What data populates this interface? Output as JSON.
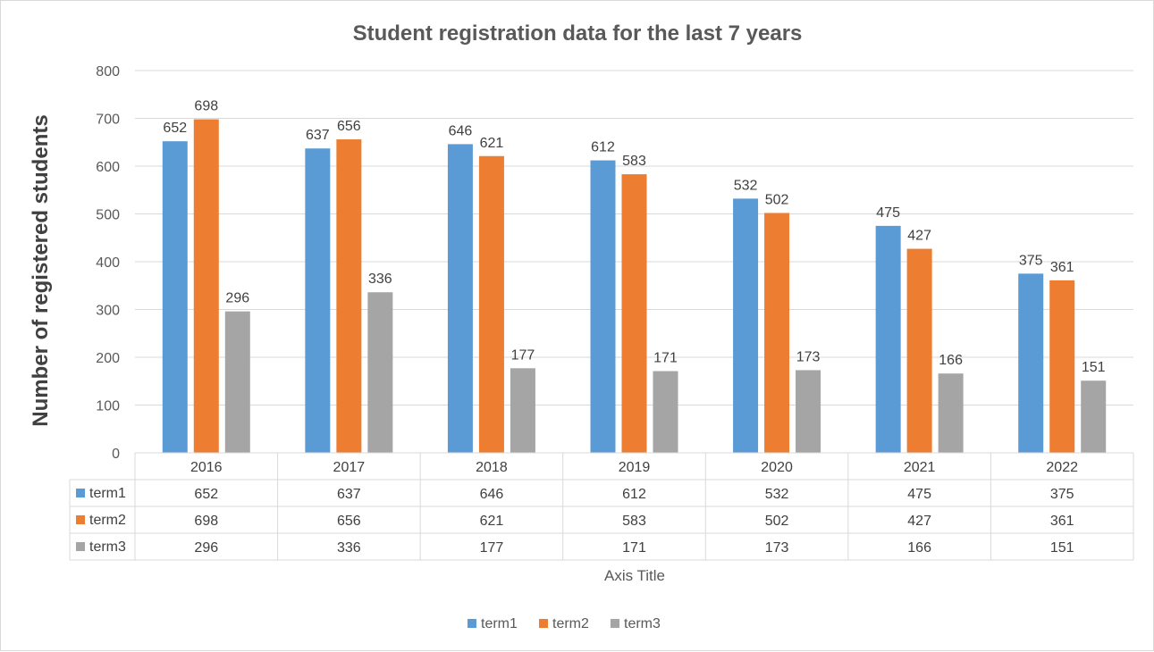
{
  "chart_data": {
    "type": "bar",
    "title": "Student registration data for the last 7 years",
    "xlabel": "Axis Title",
    "ylabel": "Number of registered students",
    "ylim": [
      0,
      800
    ],
    "y_ticks": [
      0,
      100,
      200,
      300,
      400,
      500,
      600,
      700,
      800
    ],
    "grid": true,
    "legend_position": "bottom",
    "data_table": true,
    "categories": [
      "2016",
      "2017",
      "2018",
      "2019",
      "2020",
      "2021",
      "2022"
    ],
    "series": [
      {
        "name": "term1",
        "color": "#5b9bd5",
        "values": [
          652,
          637,
          646,
          612,
          532,
          475,
          375
        ]
      },
      {
        "name": "term2",
        "color": "#ed7d31",
        "values": [
          698,
          656,
          621,
          583,
          502,
          427,
          361
        ]
      },
      {
        "name": "term3",
        "color": "#a5a5a5",
        "values": [
          296,
          336,
          177,
          171,
          173,
          166,
          151
        ]
      }
    ]
  }
}
